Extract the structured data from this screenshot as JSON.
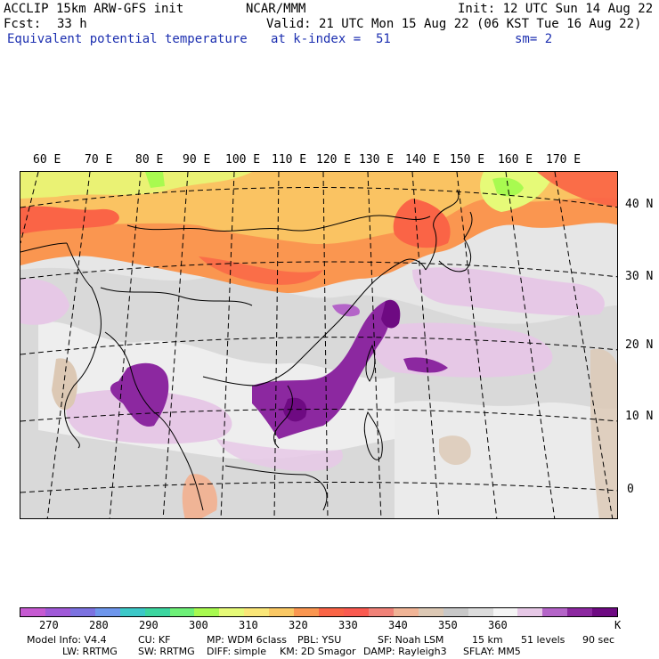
{
  "header": {
    "model": "ACCLIP 15km ARW-GFS init",
    "center": "NCAR/MMM",
    "init": "Init: 12 UTC Sun 14 Aug 22",
    "fcst_label": "Fcst:",
    "fcst_value": "33 h",
    "valid": "Valid: 21 UTC Mon 15 Aug 22 (06 KST Tue 16 Aug 22)",
    "field": "Equivalent potential temperature",
    "level": "at k-index =  51",
    "smooth": "sm= 2"
  },
  "map": {
    "lon_labels": [
      "60 E",
      "70 E",
      "80 E",
      "90 E",
      "100 E",
      "110 E",
      "120 E",
      "130 E",
      "140 E",
      "150 E",
      "160 E",
      "170 E"
    ],
    "lat_labels": [
      "40 N",
      "30 N",
      "20 N",
      "10 N",
      "0"
    ],
    "colors": {
      "land_line": "#000000",
      "grid_line": "#000000",
      "bg_gray": "#ebebeb"
    }
  },
  "colorbar": {
    "colors": [
      "#c65ad2",
      "#a05ad8",
      "#7c72e0",
      "#6e96ec",
      "#3cc8c8",
      "#3cd6a0",
      "#6ef078",
      "#a8fa50",
      "#e6fa78",
      "#fae678",
      "#fac864",
      "#fa9650",
      "#fa6446",
      "#fa5a50",
      "#f08278",
      "#f0b496",
      "#dcc8b4",
      "#c8c8c8",
      "#dcdcdc",
      "#f5f5f5",
      "#e6c8e6",
      "#b464c8",
      "#8c28a0",
      "#6e0a82"
    ],
    "ticks": [
      "270",
      "280",
      "290",
      "300",
      "310",
      "320",
      "330",
      "340",
      "350",
      "360"
    ],
    "unit": "K"
  },
  "footer": {
    "line1": [
      "Model Info: V4.4",
      "CU: KF",
      "MP: WDM 6class",
      "PBL: YSU",
      "SF: Noah LSM",
      "15 km",
      "51 levels",
      "90 sec"
    ],
    "line2": [
      "LW: RRTMG",
      "SW: RRTMG",
      "DIFF: simple",
      "KM: 2D Smagor",
      "DAMP: Rayleigh3",
      "SFLAY: MM5"
    ]
  }
}
